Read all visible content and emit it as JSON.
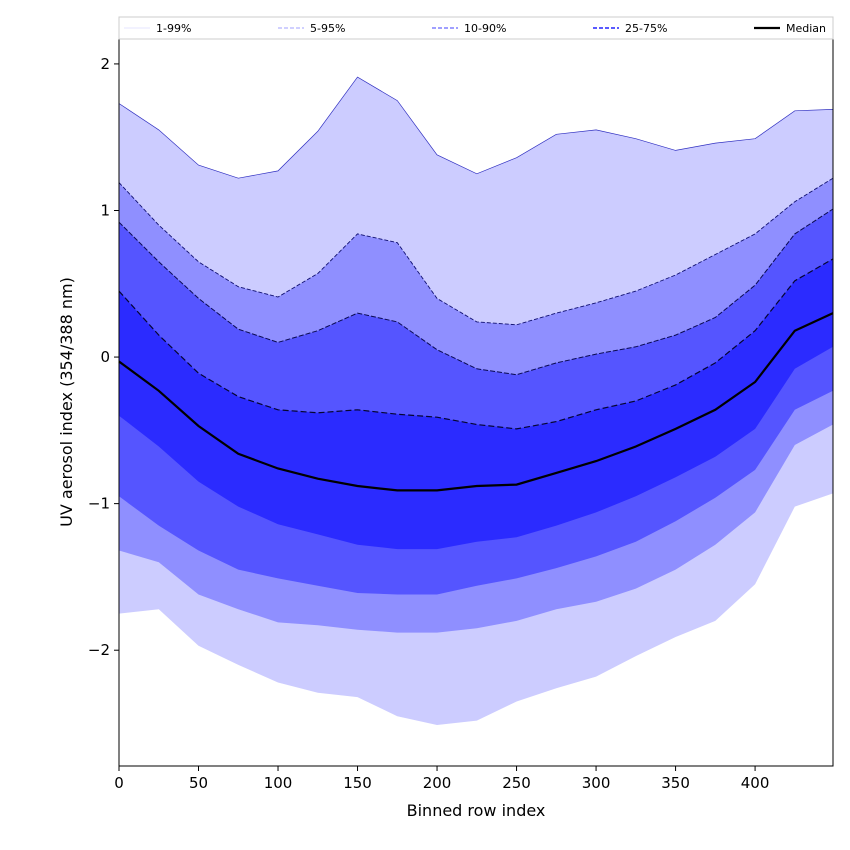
{
  "chart_data": {
    "type": "area",
    "title": "",
    "xlabel": "Binned row index",
    "ylabel": "UV aerosol index (354/388 nm)",
    "xlim": [
      0,
      449
    ],
    "ylim": [
      -2.79,
      2.17
    ],
    "xticks": [
      0,
      50,
      100,
      150,
      200,
      250,
      300,
      350,
      400
    ],
    "yticks": [
      -2,
      -1,
      0,
      1,
      2
    ],
    "ytick_labels": [
      "−2",
      "−1",
      "0",
      "1",
      "2"
    ],
    "grid": false,
    "legend_position": "top, above axes",
    "legend": [
      {
        "label": "1-99%",
        "color": "#ccccff",
        "style": "solid"
      },
      {
        "label": "5-95%",
        "color": "#a0a0ff",
        "style": "dashed"
      },
      {
        "label": "10-90%",
        "color": "#8080ff",
        "style": "dashed"
      },
      {
        "label": "25-75%",
        "color": "#5a5aff",
        "style": "dashed"
      },
      {
        "label": "Median",
        "color": "#000000",
        "style": "solid"
      }
    ],
    "band_colors": {
      "p1_99": "#ccccff",
      "p5_95": "#8f8fff",
      "p10_90": "#5555ff",
      "p25_75": "#2b2bff"
    },
    "x": [
      0,
      25,
      50,
      75,
      100,
      125,
      150,
      175,
      200,
      225,
      250,
      275,
      300,
      325,
      350,
      375,
      400,
      425,
      449
    ],
    "series": [
      {
        "name": "p99",
        "values": [
          1.73,
          1.55,
          1.31,
          1.22,
          1.27,
          1.54,
          1.91,
          1.75,
          1.38,
          1.25,
          1.36,
          1.52,
          1.55,
          1.49,
          1.41,
          1.46,
          1.49,
          1.68,
          1.69
        ]
      },
      {
        "name": "p95",
        "values": [
          1.19,
          0.9,
          0.65,
          0.48,
          0.41,
          0.57,
          0.84,
          0.78,
          0.4,
          0.24,
          0.22,
          0.3,
          0.37,
          0.45,
          0.56,
          0.7,
          0.84,
          1.06,
          1.22
        ]
      },
      {
        "name": "p90",
        "values": [
          0.92,
          0.65,
          0.4,
          0.19,
          0.1,
          0.18,
          0.3,
          0.24,
          0.05,
          -0.08,
          -0.12,
          -0.04,
          0.02,
          0.07,
          0.15,
          0.27,
          0.49,
          0.84,
          1.01
        ]
      },
      {
        "name": "p75",
        "values": [
          0.45,
          0.15,
          -0.11,
          -0.27,
          -0.36,
          -0.38,
          -0.36,
          -0.39,
          -0.41,
          -0.46,
          -0.49,
          -0.44,
          -0.36,
          -0.3,
          -0.19,
          -0.04,
          0.18,
          0.52,
          0.67
        ]
      },
      {
        "name": "Median",
        "values": [
          -0.03,
          -0.23,
          -0.47,
          -0.66,
          -0.76,
          -0.83,
          -0.88,
          -0.91,
          -0.91,
          -0.88,
          -0.87,
          -0.79,
          -0.71,
          -0.61,
          -0.49,
          -0.36,
          -0.17,
          0.18,
          0.3
        ]
      },
      {
        "name": "p25",
        "values": [
          -0.4,
          -0.61,
          -0.85,
          -1.02,
          -1.14,
          -1.21,
          -1.28,
          -1.31,
          -1.31,
          -1.26,
          -1.23,
          -1.15,
          -1.06,
          -0.95,
          -0.82,
          -0.68,
          -0.49,
          -0.08,
          0.07
        ]
      },
      {
        "name": "p10",
        "values": [
          -0.95,
          -1.15,
          -1.32,
          -1.45,
          -1.51,
          -1.56,
          -1.61,
          -1.62,
          -1.62,
          -1.56,
          -1.51,
          -1.44,
          -1.36,
          -1.26,
          -1.12,
          -0.96,
          -0.77,
          -0.36,
          -0.23
        ]
      },
      {
        "name": "p5",
        "values": [
          -1.32,
          -1.4,
          -1.62,
          -1.72,
          -1.81,
          -1.83,
          -1.86,
          -1.88,
          -1.88,
          -1.85,
          -1.8,
          -1.72,
          -1.67,
          -1.58,
          -1.45,
          -1.28,
          -1.06,
          -0.6,
          -0.46
        ]
      },
      {
        "name": "p1",
        "values": [
          -1.75,
          -1.72,
          -1.97,
          -2.1,
          -2.22,
          -2.29,
          -2.32,
          -2.45,
          -2.51,
          -2.48,
          -2.35,
          -2.26,
          -2.18,
          -2.04,
          -1.91,
          -1.8,
          -1.55,
          -1.02,
          -0.93
        ]
      }
    ]
  }
}
